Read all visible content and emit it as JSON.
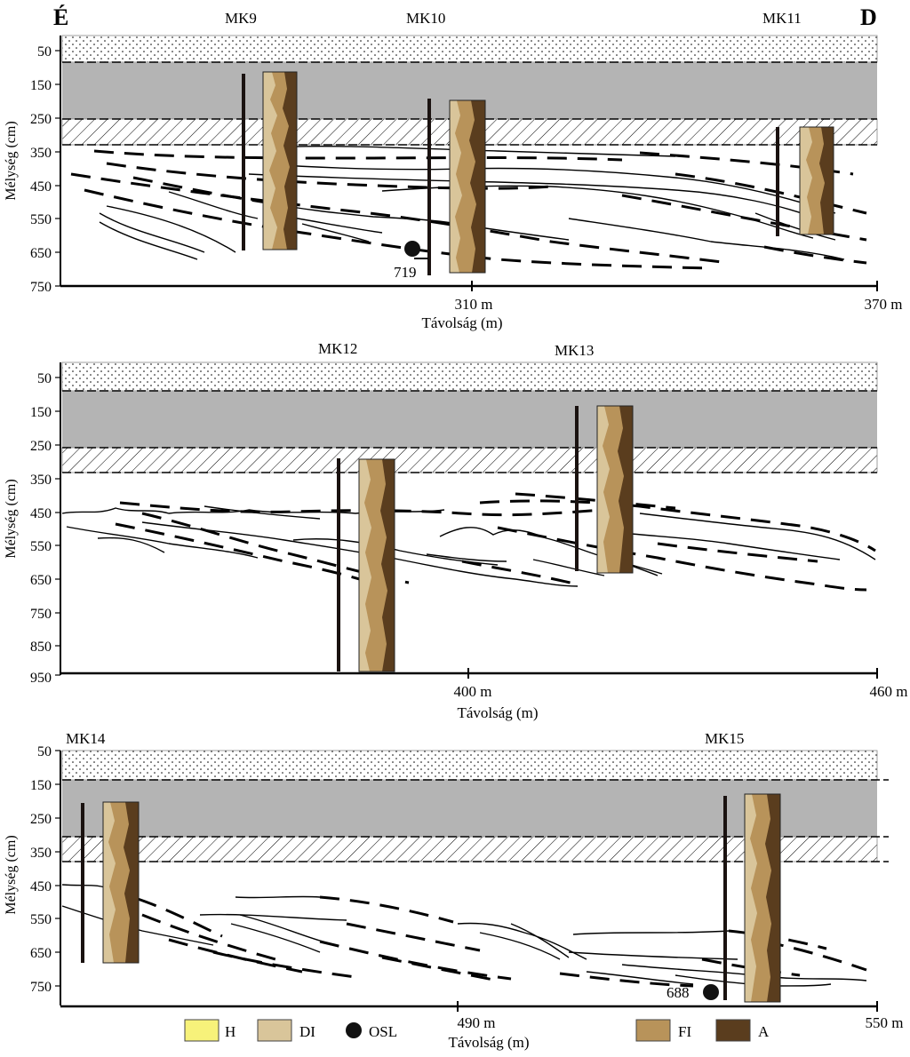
{
  "directions": {
    "north": "É",
    "south": "D"
  },
  "panels": [
    {
      "wells": [
        "MK9",
        "MK10",
        "MK11"
      ],
      "y_axis": {
        "label": "Mélység (cm)",
        "ticks": [
          "50",
          "150",
          "250",
          "350",
          "450",
          "550",
          "650",
          "750"
        ]
      },
      "x_axis": {
        "label": "Távolság (m)",
        "ticks": [
          "310 m",
          "370 m"
        ]
      },
      "osl": [
        {
          "label": "719"
        }
      ]
    },
    {
      "wells": [
        "MK12",
        "MK13"
      ],
      "y_axis": {
        "label": "Mélység (cm)",
        "ticks": [
          "50",
          "150",
          "250",
          "350",
          "450",
          "550",
          "650",
          "750",
          "850",
          "950"
        ]
      },
      "x_axis": {
        "label": "Távolság (m)",
        "ticks": [
          "400 m",
          "460 m"
        ]
      },
      "osl": []
    },
    {
      "wells": [
        "MK14",
        "MK15"
      ],
      "y_axis": {
        "label": "Mélység (cm)",
        "ticks": [
          "50",
          "150",
          "250",
          "350",
          "450",
          "550",
          "650",
          "750"
        ]
      },
      "x_axis": {
        "label": "Távolság (m)",
        "ticks": [
          "490 m",
          "550 m"
        ]
      },
      "osl": [
        {
          "label": "688"
        }
      ]
    }
  ],
  "legend": [
    {
      "code": "H",
      "color": "#f7f27a"
    },
    {
      "code": "DI",
      "color": "#d9c59a"
    },
    {
      "code": "OSL",
      "color": "#111111"
    },
    {
      "code": "FI",
      "color": "#b8935a"
    },
    {
      "code": "A",
      "color": "#5a3d1e"
    }
  ],
  "colors": {
    "gray_layer": "#b4b4b4",
    "core_light": "#d9c59a",
    "core_mid": "#b8935a",
    "core_dark": "#5a3d1e"
  }
}
